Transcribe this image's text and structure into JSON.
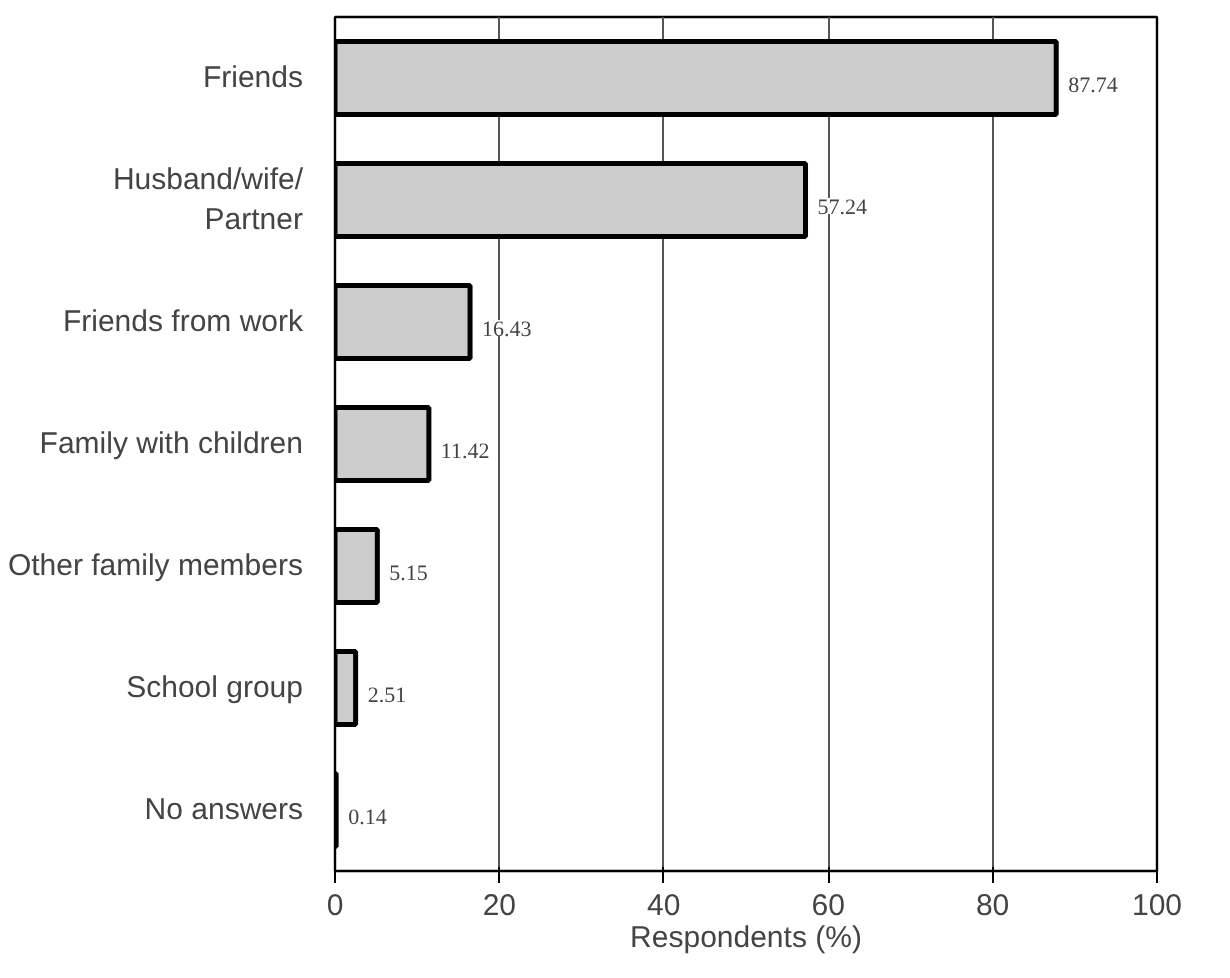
{
  "chart_data": {
    "type": "bar",
    "orientation": "horizontal",
    "xlabel": "Respondents (%)",
    "categories": [
      "Friends",
      "Husband/wife/\nPartner",
      "Friends from work",
      "Family with children",
      "Other family members",
      "School group",
      "No answers"
    ],
    "values": [
      87.74,
      57.24,
      16.43,
      11.42,
      5.15,
      2.51,
      0.14
    ],
    "color": "#cccccc",
    "xlim": [
      0,
      100
    ],
    "xticks": [
      0,
      20,
      40,
      60,
      80,
      100
    ],
    "grid": "x",
    "data_labels": true
  }
}
